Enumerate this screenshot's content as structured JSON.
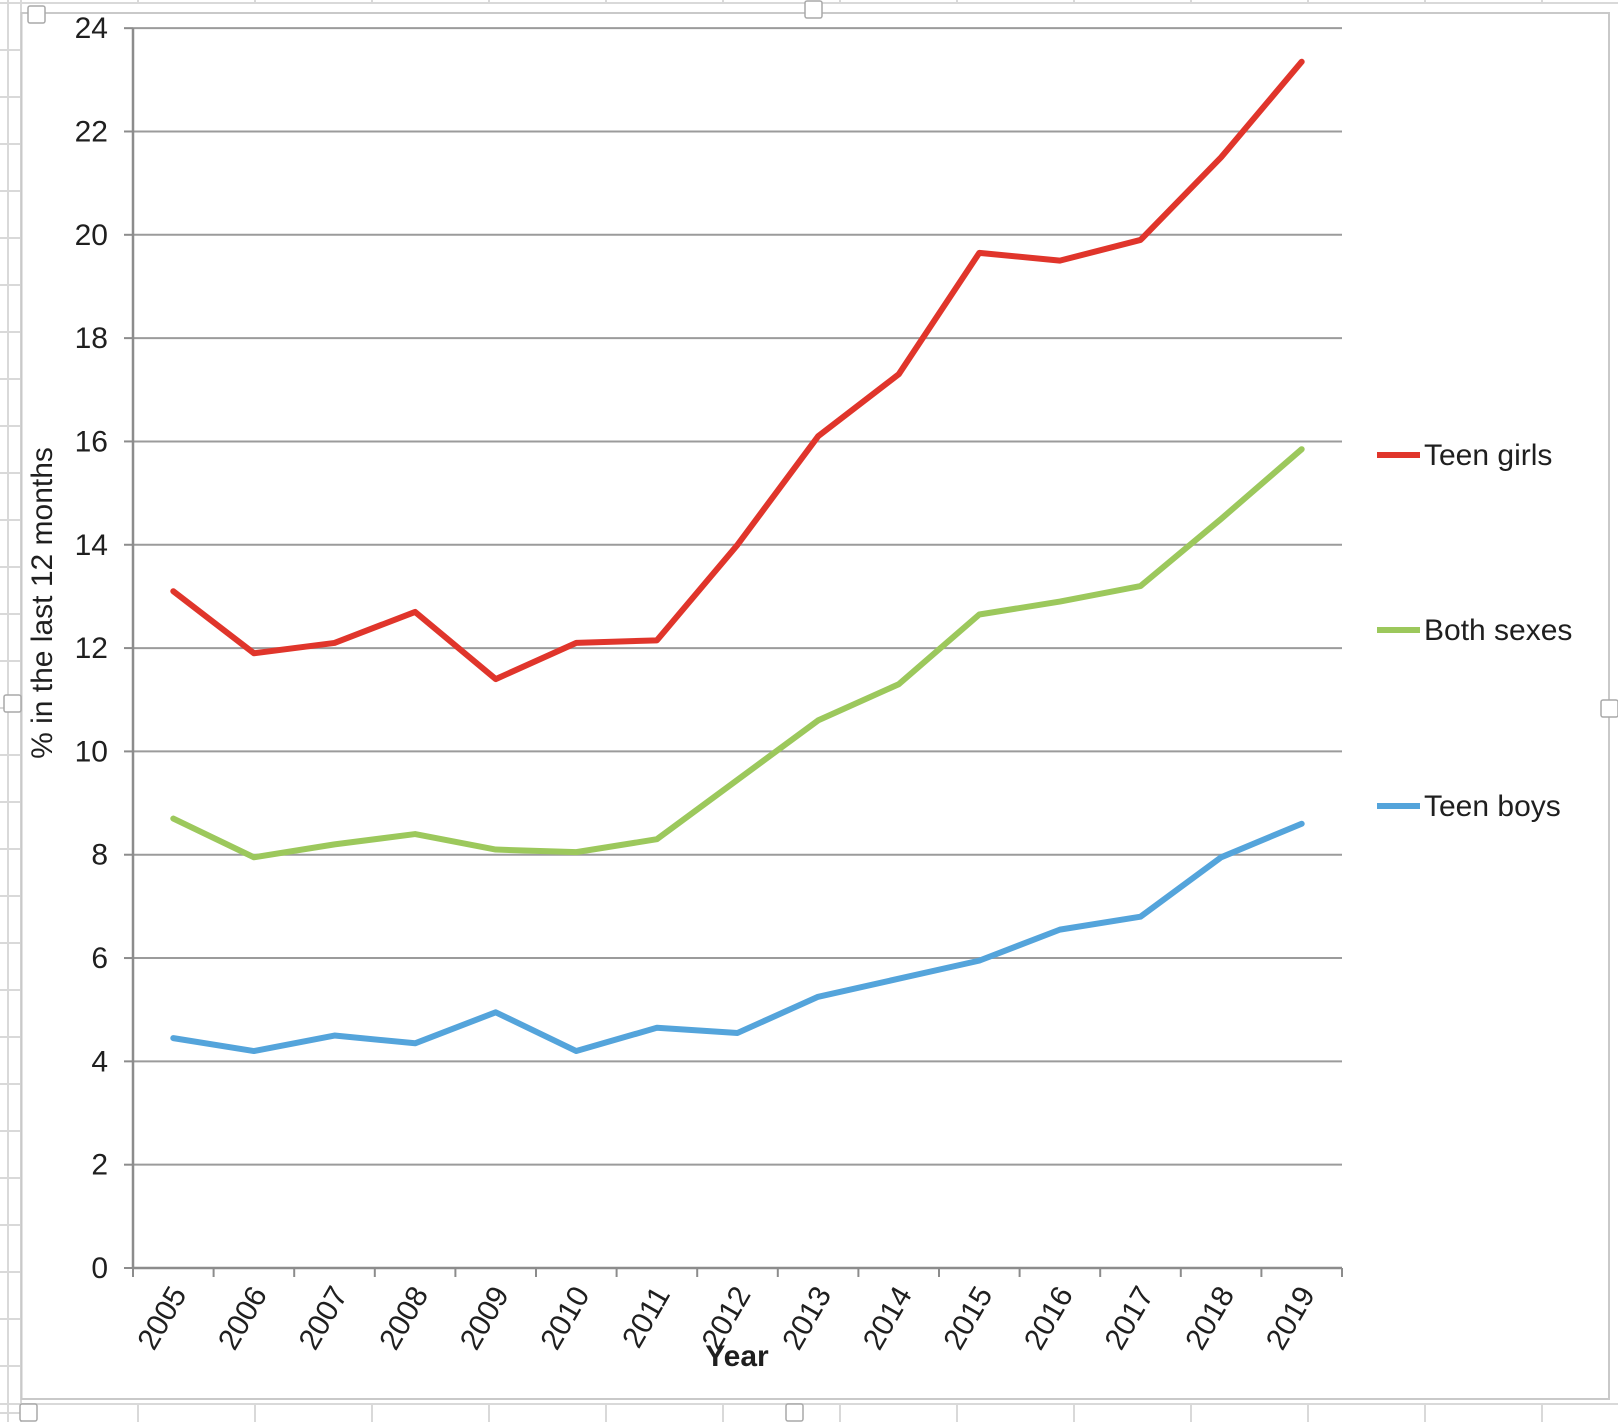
{
  "chart_data": {
    "type": "line",
    "categories": [
      "2005",
      "2006",
      "2007",
      "2008",
      "2009",
      "2010",
      "2011",
      "2012",
      "2013",
      "2014",
      "2015",
      "2016",
      "2017",
      "2018",
      "2019"
    ],
    "series": [
      {
        "name": "Teen girls",
        "color": "#E0352B",
        "values": [
          13.1,
          11.9,
          12.1,
          12.7,
          11.4,
          12.1,
          12.15,
          14.0,
          16.1,
          17.3,
          19.65,
          19.5,
          19.9,
          21.5,
          23.35
        ]
      },
      {
        "name": "Both sexes",
        "color": "#9CC85C",
        "values": [
          8.7,
          7.95,
          8.2,
          8.4,
          8.1,
          8.05,
          8.3,
          9.45,
          10.6,
          11.3,
          12.65,
          12.9,
          13.2,
          14.5,
          15.85
        ]
      },
      {
        "name": "Teen boys",
        "color": "#54A4DB",
        "values": [
          4.45,
          4.2,
          4.5,
          4.35,
          4.95,
          4.2,
          4.65,
          4.55,
          5.25,
          5.6,
          5.95,
          6.55,
          6.8,
          7.95,
          8.6
        ]
      }
    ],
    "xlabel": "Year",
    "ylabel": "% in the last 12 months",
    "ylim": [
      0,
      24
    ],
    "ytick_step": 2,
    "grid": true,
    "legend_position": "right"
  },
  "colors": {
    "gridline": "#9b9b9b",
    "axis": "#8c8c8c",
    "frame": "#c9c9c9",
    "sheet_grid": "#d9d9d9",
    "tick_label": "#1f1f1f"
  }
}
